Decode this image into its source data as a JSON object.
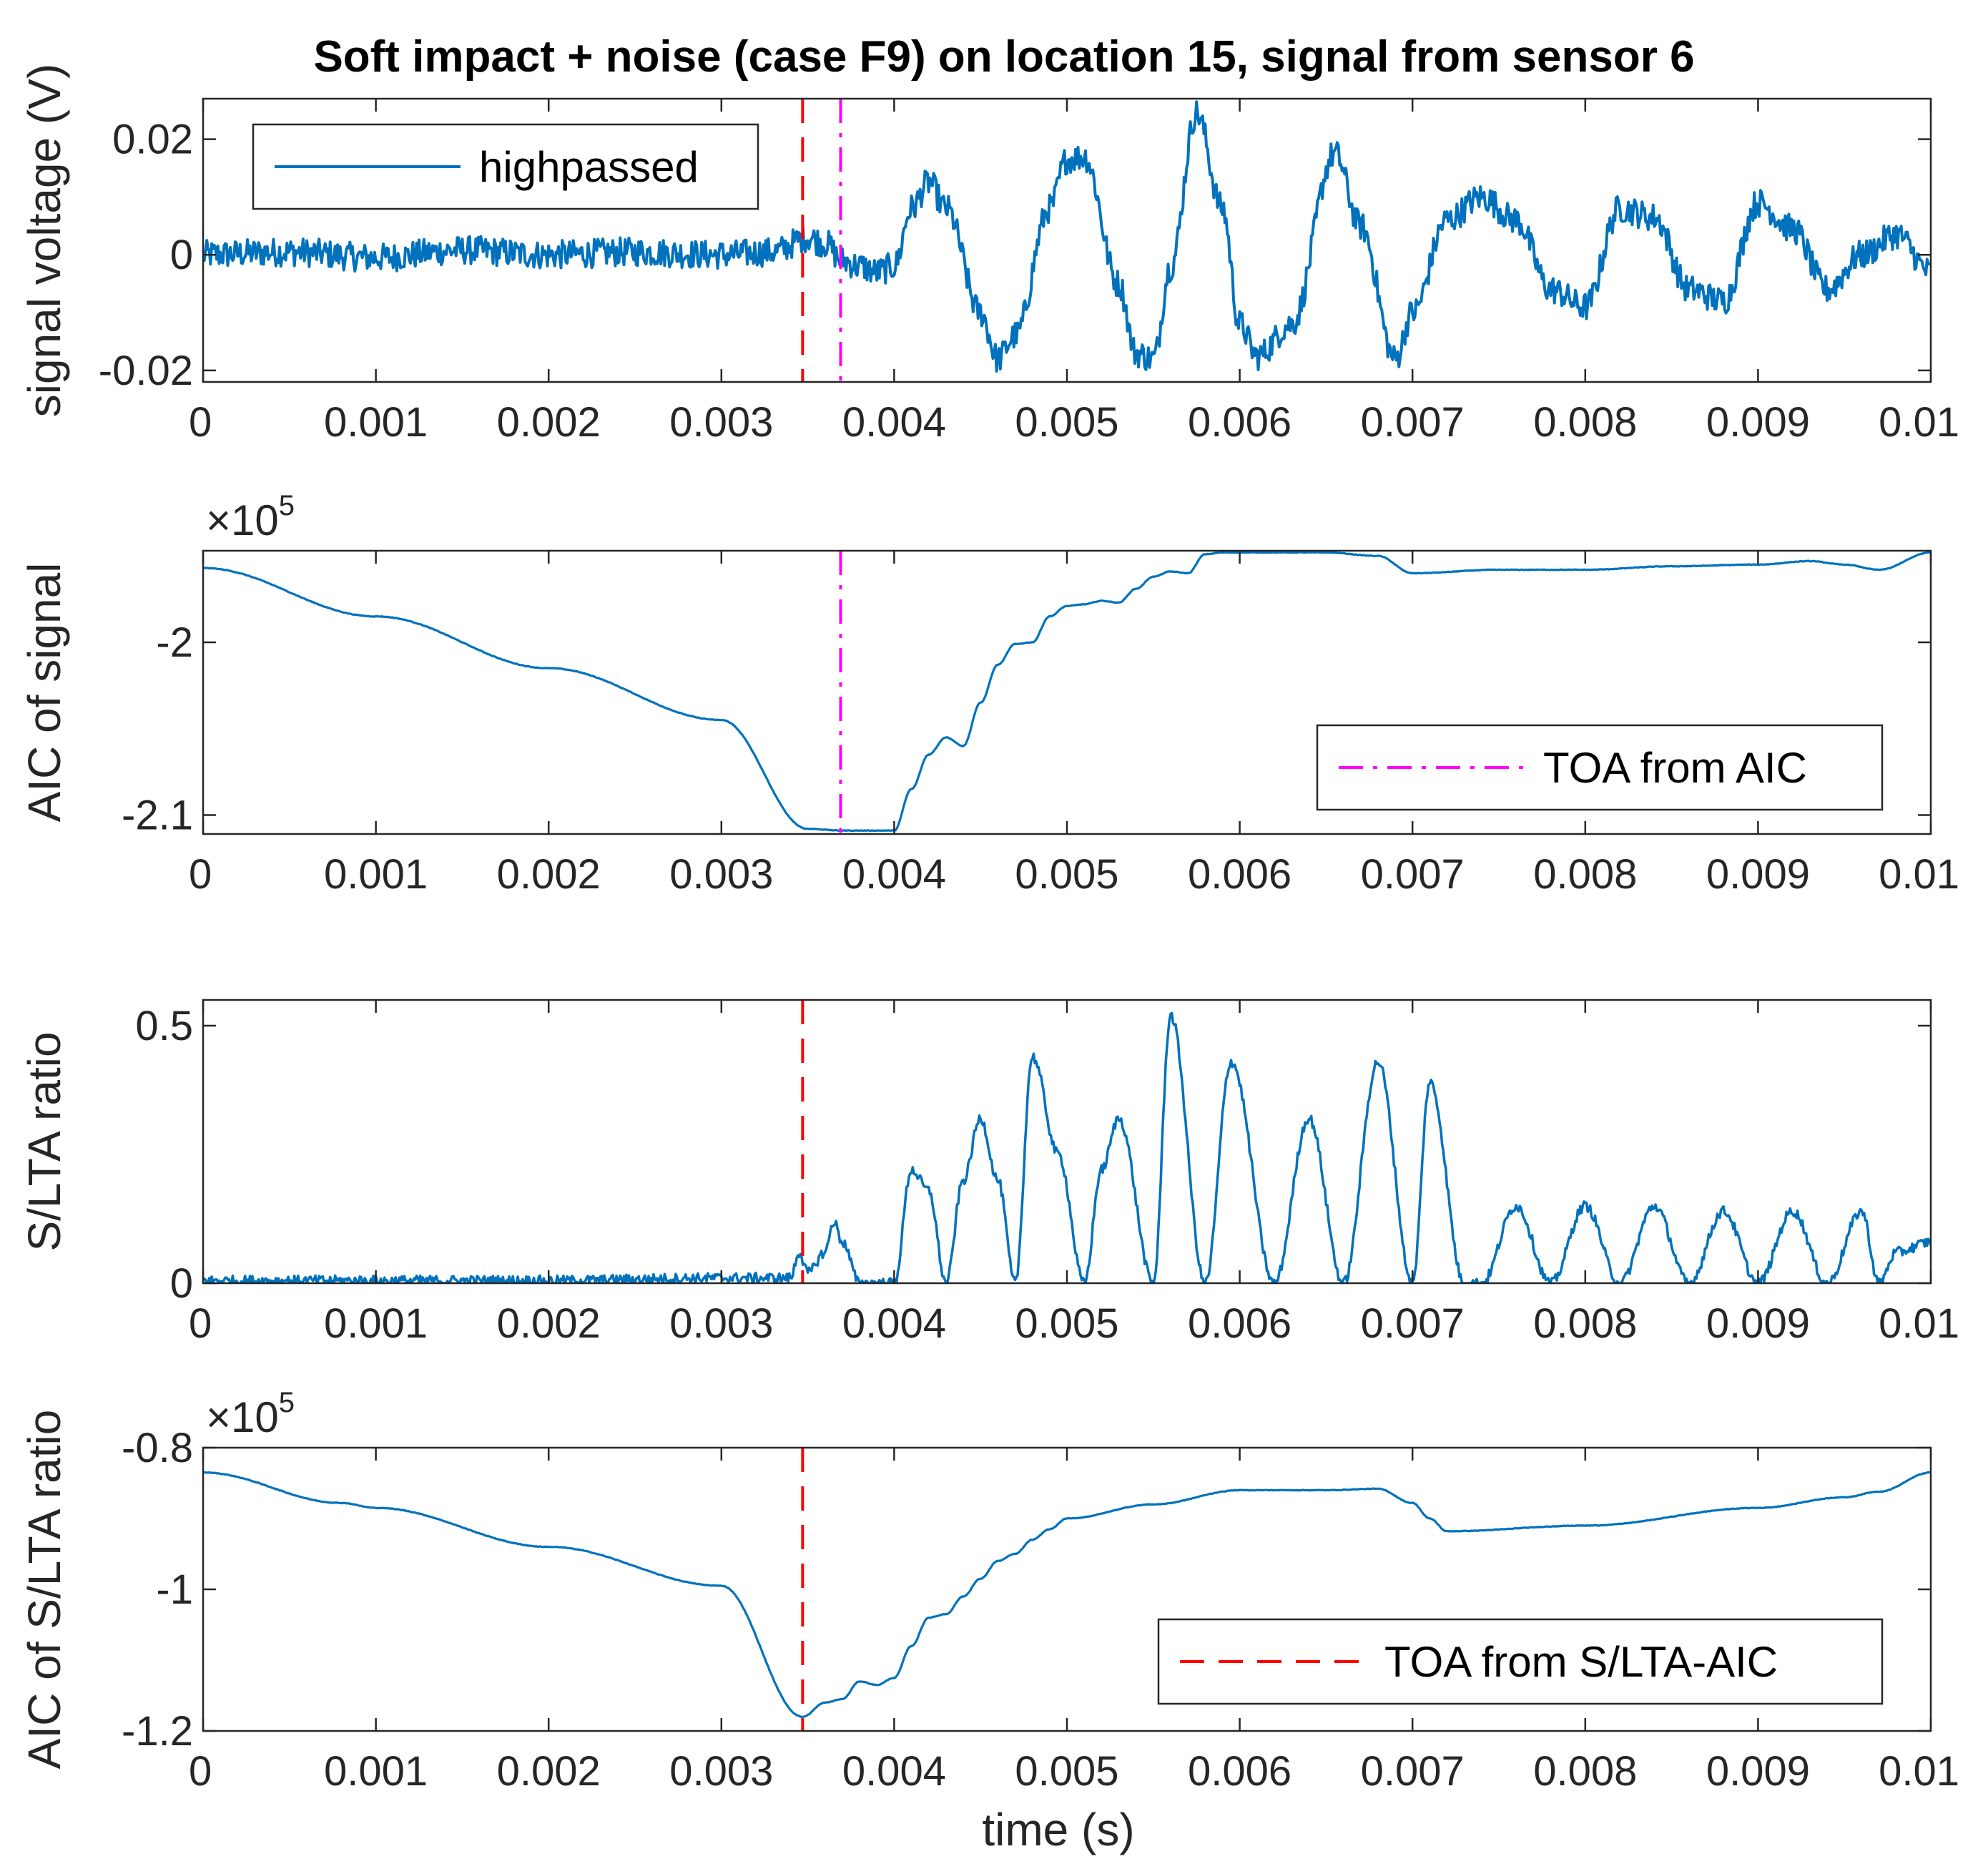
{
  "chart_data": {
    "title": "Soft impact + noise (case F9) on location 15, signal from sensor 6",
    "xlabel": "time (s)",
    "x_ticks": [
      "0",
      "0.001",
      "0.002",
      "0.003",
      "0.004",
      "0.005",
      "0.006",
      "0.007",
      "0.008",
      "0.009",
      "0.01"
    ],
    "x_tick_values": [
      0,
      0.001,
      0.002,
      0.003,
      0.004,
      0.005,
      0.006,
      0.007,
      0.008,
      0.009,
      0.01
    ],
    "xlim": [
      0,
      0.01
    ],
    "colors": {
      "signal": "#0072BD",
      "toa_aic": "#FF00FF",
      "toa_sltaaic": "#FF0000",
      "axes": "#262626"
    },
    "panels": [
      {
        "id": "signal",
        "type": "line",
        "ylabel": "signal voltage (V)",
        "ylim": [
          -0.022,
          0.027
        ],
        "y_ticks": [
          "0.02",
          "0",
          "-0.02"
        ],
        "y_tick_values": [
          0.02,
          0,
          -0.02
        ],
        "exponent": "",
        "series": [
          {
            "name": "highpassed",
            "noise_amplitude": 0.0025,
            "x": [
              0,
              0.0005,
              0.001,
              0.0015,
              0.002,
              0.0025,
              0.003,
              0.0033,
              0.0035,
              0.0036,
              0.0037,
              0.0038,
              0.0039,
              0.004,
              0.0041,
              0.0042,
              0.0043,
              0.0045,
              0.0046,
              0.0047,
              0.0049,
              0.005,
              0.0051,
              0.0053,
              0.0054,
              0.0055,
              0.0056,
              0.00575,
              0.0059,
              0.006,
              0.0061,
              0.0063,
              0.00655,
              0.0067,
              0.0069,
              0.007,
              0.0072,
              0.0074,
              0.0076,
              0.0078,
              0.008,
              0.0082,
              0.0084,
              0.0086,
              0.0088,
              0.009,
              0.0092,
              0.0094,
              0.0096,
              0.0098,
              0.01
            ],
            "y": [
              0,
              0.0005,
              -0.0005,
              0.0008,
              0,
              0.0005,
              0,
              0.0005,
              0.003,
              0.002,
              -0.001,
              -0.002,
              -0.003,
              -0.002,
              0.008,
              0.0125,
              0.008,
              -0.01,
              -0.018,
              -0.014,
              0.008,
              0.0165,
              0.017,
              -0.005,
              -0.017,
              -0.018,
              -0.002,
              0.0245,
              0.008,
              -0.012,
              -0.0175,
              -0.012,
              0.0175,
              0.005,
              -0.018,
              -0.01,
              0.006,
              0.01,
              0.006,
              -0.006,
              -0.009,
              0.008,
              0.0065,
              -0.006,
              -0.008,
              0.009,
              0.0045,
              -0.006,
              0,
              0.0035,
              -0.003
            ]
          }
        ],
        "vlines": [
          {
            "x": 0.00347,
            "style": "dashed",
            "color_key": "toa_sltaaic"
          },
          {
            "x": 0.00369,
            "style": "dashdot",
            "color_key": "toa_aic"
          }
        ],
        "legend": {
          "label": "highpassed",
          "placement": "top-left",
          "style": "solid",
          "color_key": "signal"
        }
      },
      {
        "id": "aic",
        "type": "line",
        "ylabel": "AIC of signal",
        "ylim": [
          -2.111,
          -1.947
        ],
        "y_ticks": [
          "-2",
          "-2.1"
        ],
        "y_tick_values": [
          -2.0,
          -2.1
        ],
        "exponent": "×10",
        "exponent_power": "5",
        "series": [
          {
            "name": "AIC of signal",
            "noise_amplitude": 0,
            "x": [
              0,
              0.001,
              0.002,
              0.003,
              0.0035,
              0.0037,
              0.004,
              0.0041,
              0.0042,
              0.0043,
              0.0044,
              0.0045,
              0.0046,
              0.0047,
              0.0048,
              0.0049,
              0.005,
              0.0051,
              0.0052,
              0.0053,
              0.0054,
              0.0055,
              0.0056,
              0.0057,
              0.0058,
              0.0059,
              0.006,
              0.0065,
              0.0068,
              0.007,
              0.0075,
              0.008,
              0.0085,
              0.009,
              0.0093,
              0.0095,
              0.0097,
              0.01
            ],
            "y": [
              -1.957,
              -1.985,
              -2.015,
              -2.045,
              -2.108,
              -2.109,
              -2.109,
              -2.085,
              -2.065,
              -2.055,
              -2.06,
              -2.035,
              -2.013,
              -2.001,
              -2.0,
              -1.985,
              -1.979,
              -1.978,
              -1.976,
              -1.977,
              -1.969,
              -1.962,
              -1.959,
              -1.96,
              -1.949,
              -1.948,
              -1.948,
              -1.948,
              -1.95,
              -1.96,
              -1.958,
              -1.958,
              -1.956,
              -1.955,
              -1.953,
              -1.955,
              -1.958,
              -1.948
            ]
          }
        ],
        "vlines": [
          {
            "x": 0.00369,
            "style": "dashdot",
            "color_key": "toa_aic"
          }
        ],
        "legend": {
          "label": "TOA from AIC",
          "placement": "bottom-right",
          "style": "dashdot",
          "color_key": "toa_aic"
        }
      },
      {
        "id": "slta",
        "type": "line",
        "ylabel": "S/LTA ratio",
        "ylim": [
          0,
          0.55
        ],
        "y_ticks": [
          "0.5",
          "0"
        ],
        "y_tick_values": [
          0.5,
          0
        ],
        "exponent": "",
        "series": [
          {
            "name": "S/LTA ratio",
            "noise_amplitude": 0.01,
            "x": [
              0,
              0.001,
              0.002,
              0.003,
              0.0034,
              0.00345,
              0.0035,
              0.0036,
              0.00365,
              0.0037,
              0.0038,
              0.0039,
              0.004,
              0.0041,
              0.0042,
              0.0043,
              0.0044,
              0.0045,
              0.0046,
              0.0047,
              0.0048,
              0.00495,
              0.0051,
              0.0052,
              0.0053,
              0.0055,
              0.0056,
              0.0058,
              0.00595,
              0.0062,
              0.0064,
              0.0066,
              0.0068,
              0.007,
              0.0071,
              0.0073,
              0.0074,
              0.0076,
              0.0078,
              0.008,
              0.0082,
              0.0084,
              0.0086,
              0.0088,
              0.009,
              0.0092,
              0.0094,
              0.0096,
              0.0097,
              0.0098,
              0.01
            ],
            "y": [
              0.005,
              0.005,
              0.005,
              0.01,
              0.01,
              0.06,
              0.02,
              0.06,
              0.12,
              0.08,
              0.0,
              0.0,
              0.0,
              0.22,
              0.18,
              0.0,
              0.2,
              0.32,
              0.2,
              0.0,
              0.44,
              0.25,
              0.0,
              0.22,
              0.32,
              0.0,
              0.52,
              0.0,
              0.43,
              0.0,
              0.32,
              0.0,
              0.43,
              0.0,
              0.39,
              0.0,
              0.0,
              0.15,
              0.0,
              0.15,
              0.0,
              0.15,
              0.0,
              0.14,
              0.0,
              0.14,
              0.0,
              0.14,
              0.0,
              0.06,
              0.08
            ]
          }
        ],
        "vlines": [
          {
            "x": 0.00347,
            "style": "dashed",
            "color_key": "toa_sltaaic"
          }
        ],
        "legend": null
      },
      {
        "id": "aic_slta",
        "type": "line",
        "ylabel": "AIC of S/LTA ratio",
        "ylim": [
          -1.2,
          -0.8
        ],
        "y_ticks": [
          "-0.8",
          "-1",
          "-1.2"
        ],
        "y_tick_values": [
          -0.8,
          -1.0,
          -1.2
        ],
        "exponent": "×10",
        "exponent_power": "5",
        "series": [
          {
            "name": "AIC of S/LTA ratio",
            "noise_amplitude": 0,
            "x": [
              0,
              0.0008,
              0.001,
              0.002,
              0.003,
              0.00347,
              0.0036,
              0.0037,
              0.0038,
              0.0039,
              0.004,
              0.0041,
              0.0042,
              0.0043,
              0.0044,
              0.0045,
              0.0046,
              0.0047,
              0.0048,
              0.0049,
              0.005,
              0.0055,
              0.006,
              0.0065,
              0.0068,
              0.007,
              0.0071,
              0.0072,
              0.008,
              0.009,
              0.0095,
              0.0097,
              0.01
            ],
            "y": [
              -0.835,
              -0.878,
              -0.885,
              -0.94,
              -0.995,
              -1.18,
              -1.16,
              -1.155,
              -1.13,
              -1.135,
              -1.125,
              -1.08,
              -1.04,
              -1.035,
              -1.01,
              -0.985,
              -0.96,
              -0.95,
              -0.93,
              -0.915,
              -0.9,
              -0.88,
              -0.86,
              -0.86,
              -0.858,
              -0.878,
              -0.9,
              -0.918,
              -0.91,
              -0.885,
              -0.87,
              -0.862,
              -0.835
            ]
          }
        ],
        "vlines": [
          {
            "x": 0.00347,
            "style": "dashed",
            "color_key": "toa_sltaaic"
          }
        ],
        "legend": {
          "label": "TOA from S/LTA-AIC",
          "placement": "bottom-right",
          "style": "dashed",
          "color_key": "toa_sltaaic"
        }
      }
    ]
  }
}
